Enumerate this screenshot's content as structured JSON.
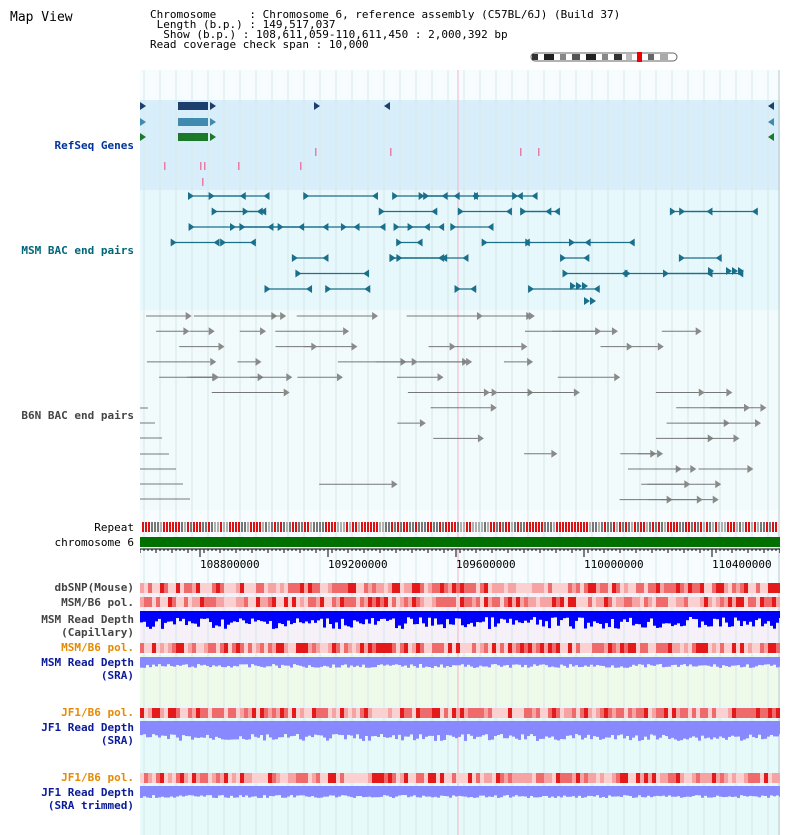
{
  "header": {
    "title": "Map View",
    "chromosome_key": "Chromosome     ",
    "chromosome_value": "Chromosome 6, reference assembly (C57BL/6J) (Build 37)",
    "length_key": " Length (b.p.) ",
    "length_value": "149,517,037",
    "show_key": "  Show (b.p.) ",
    "show_value": "108,611,059-110,611,450 : 2,000,392 bp",
    "span_key": "Read coverage check span",
    "span_value": "10,000"
  },
  "tracks": {
    "refseq": "RefSeq Genes",
    "msm_bac": "MSM BAC end pairs",
    "b6n_bac": "B6N BAC end pairs",
    "repeat": "Repeat",
    "chromosome": "chromosome 6",
    "dbsnp": "dbSNP(Mouse)",
    "msm_b6_pol_cap": "MSM/B6 pol.",
    "msm_depth_cap_1": "MSM Read Depth",
    "msm_depth_cap_2": "(Capillary)",
    "msm_b6_pol_sra": "MSM/B6 pol.",
    "msm_depth_sra_1": "MSM Read Depth",
    "msm_depth_sra_2": "(SRA)",
    "jf1_pol_sra": "JF1/B6 pol.",
    "jf1_depth_sra_1": "JF1 Read Depth",
    "jf1_depth_sra_2": "(SRA)",
    "jf1_pol_trim": "JF1/B6 pol.",
    "jf1_depth_trim_1": "JF1 Read Depth",
    "jf1_depth_trim_2": "(SRA trimmed)"
  },
  "axis": {
    "ticks": [
      "108800000",
      "109200000",
      "109600000",
      "110000000",
      "110400000"
    ]
  },
  "colors": {
    "refseq_bg": "#d8eefa",
    "bac_bg": "#e6f8fb",
    "msm_bac": "#1a6f8a",
    "b6n_bac": "#777777",
    "repeat_red": "#dd1111",
    "chromosome": "#007000",
    "depth_cap": "#0000ff",
    "depth_sra": "#8888ff",
    "msm_sra_bg": "#eefbea",
    "jf1_bg": "#e6fafa"
  }
}
